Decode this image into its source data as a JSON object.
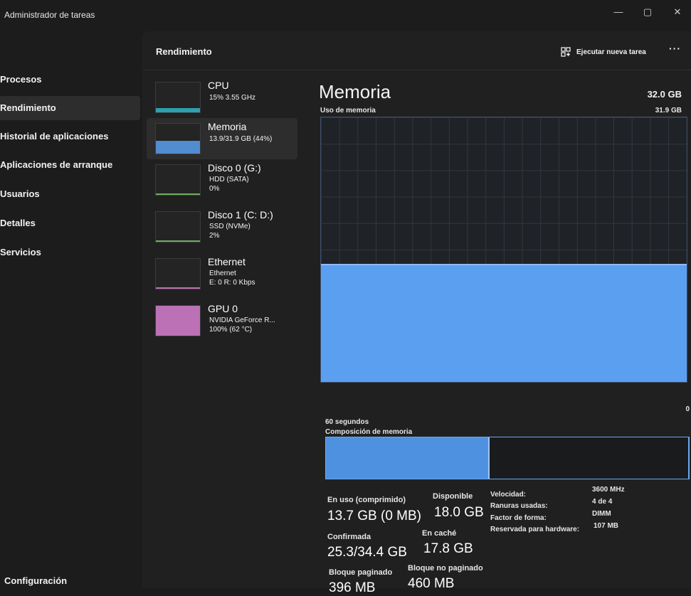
{
  "window": {
    "title": "Administrador de tareas",
    "controls": {
      "minimize": "—",
      "maximize": "▢",
      "close": "✕"
    }
  },
  "sidebar": {
    "items": [
      {
        "label": "Procesos",
        "active": false
      },
      {
        "label": "Rendimiento",
        "active": true
      },
      {
        "label": "Historial de aplicaciones",
        "active": false
      },
      {
        "label": "Aplicaciones de arranque",
        "active": false
      },
      {
        "label": "Usuarios",
        "active": false
      },
      {
        "label": "Detalles",
        "active": false
      },
      {
        "label": "Servicios",
        "active": false
      }
    ],
    "settings_label": "Configuración"
  },
  "header": {
    "title": "Rendimiento",
    "run_task_label": "Ejecutar nueva tarea",
    "more_label": "···"
  },
  "devices": [
    {
      "name": "CPU",
      "lines": [
        "15% 3.55 GHz"
      ],
      "color": "#2fb7c9",
      "level": 0.15,
      "active": false
    },
    {
      "name": "Memoria",
      "lines": [
        "13.9/31.9 GB (44%)"
      ],
      "color": "#5b9ff0",
      "level": 0.44,
      "active": true
    },
    {
      "name": "Disco 0 (G:)",
      "lines": [
        "HDD (SATA)",
        "0%"
      ],
      "color": "#7cc46b",
      "level": 0.0,
      "active": false
    },
    {
      "name": "Disco 1 (C: D:)",
      "lines": [
        "SSD (NVMe)",
        "2%"
      ],
      "color": "#7cc46b",
      "level": 0.02,
      "active": false
    },
    {
      "name": "Ethernet",
      "lines": [
        "Ethernet",
        "E: 0 R: 0 Kbps"
      ],
      "color": "#d77fd0",
      "level": 0.05,
      "active": false
    },
    {
      "name": "GPU 0",
      "lines": [
        "NVIDIA GeForce R...",
        "100% (62 °C)"
      ],
      "color": "#d77fd0",
      "level": 1.0,
      "active": false
    }
  ],
  "memory": {
    "title": "Memoria",
    "total": "32.0 GB",
    "usage_label": "Uso de memoria",
    "usage_max": "31.9 GB",
    "graph_min": "0",
    "time_label": "60 segundos",
    "usage_level": 0.44,
    "composition_label": "Composición de memoria",
    "composition": {
      "in_use": 0.45,
      "standby": 0.55
    },
    "accent_color": "#5b9ff0",
    "stats": {
      "in_use_label": "En uso (comprimido)",
      "in_use_value": "13.7 GB (0 MB)",
      "available_label": "Disponible",
      "available_value": "18.0 GB",
      "committed_label": "Confirmada",
      "committed_value": "25.3/34.4 GB",
      "cached_label": "En caché",
      "cached_value": "17.8 GB",
      "paged_label": "Bloque paginado",
      "paged_value": "396 MB",
      "nonpaged_label": "Bloque no paginado",
      "nonpaged_value": "460 MB"
    },
    "properties": [
      {
        "label": "Velocidad:",
        "value": "3600 MHz"
      },
      {
        "label": "Ranuras usadas:",
        "value": "4 de 4"
      },
      {
        "label": "Factor de forma:",
        "value": "DIMM"
      },
      {
        "label": "Reservada para hardware:",
        "value": "107 MB"
      }
    ]
  }
}
